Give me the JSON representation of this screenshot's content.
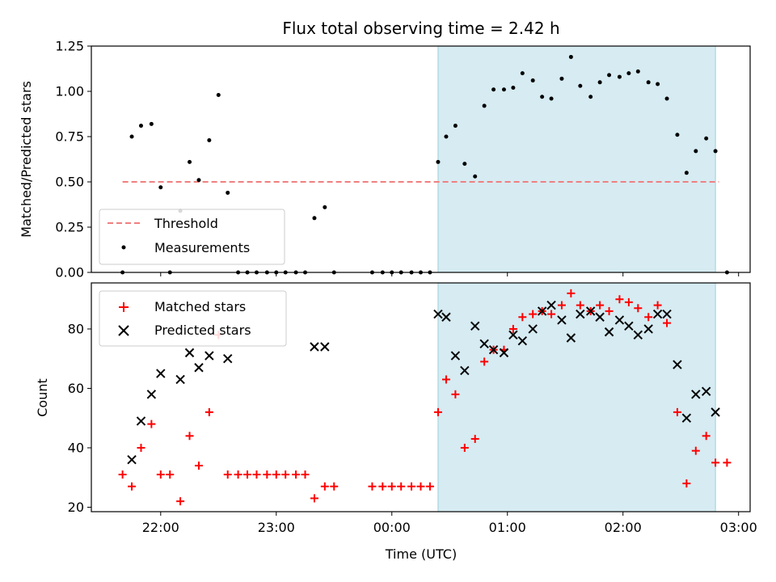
{
  "chart_data": [
    {
      "type": "scatter",
      "title": "Flux total observing time = 2.42 h",
      "xlabel": "",
      "ylabel": "Matched/Predicted stars",
      "ylim": [
        0,
        1.25
      ],
      "yticks": [
        "0.00",
        "0.25",
        "0.50",
        "0.75",
        "1.00",
        "1.25"
      ],
      "legend": {
        "placement": "lower-left",
        "entries": [
          "Threshold",
          "Measurements"
        ]
      },
      "threshold": {
        "name": "Threshold",
        "value": 0.5,
        "x_from": 21.67,
        "x_to": 26.83,
        "color": "#f08080"
      },
      "shaded_region": {
        "from": 24.4,
        "to": 26.8,
        "color": "#add8e6"
      },
      "series": [
        {
          "name": "Measurements",
          "color": "#000000",
          "x": [
            21.67,
            21.75,
            21.83,
            21.92,
            22.0,
            22.08,
            22.17,
            22.25,
            22.33,
            22.42,
            22.5,
            22.58,
            22.67,
            22.75,
            22.83,
            22.92,
            23.0,
            23.08,
            23.17,
            23.25,
            23.33,
            23.42,
            23.5,
            23.83,
            23.92,
            24.0,
            24.08,
            24.17,
            24.25,
            24.33,
            24.4,
            24.47,
            24.55,
            24.63,
            24.72,
            24.8,
            24.88,
            24.97,
            25.05,
            25.13,
            25.22,
            25.3,
            25.38,
            25.47,
            25.55,
            25.63,
            25.72,
            25.8,
            25.88,
            25.97,
            26.05,
            26.13,
            26.22,
            26.3,
            26.38,
            26.47,
            26.55,
            26.63,
            26.72,
            26.8,
            26.9
          ],
          "y": [
            0.0,
            0.75,
            0.81,
            0.82,
            0.47,
            0.0,
            0.34,
            0.61,
            0.51,
            0.73,
            0.98,
            0.44,
            0.0,
            0.0,
            0.0,
            0.0,
            0.0,
            0.0,
            0.0,
            0.0,
            0.3,
            0.36,
            0.0,
            0.0,
            0.0,
            0.0,
            0.0,
            0.0,
            0.0,
            0.0,
            0.61,
            0.75,
            0.81,
            0.6,
            0.53,
            0.92,
            1.01,
            1.01,
            1.02,
            1.1,
            1.06,
            0.97,
            0.96,
            1.07,
            1.19,
            1.03,
            0.97,
            1.05,
            1.09,
            1.08,
            1.1,
            1.11,
            1.05,
            1.04,
            0.96,
            0.76,
            0.55,
            0.67,
            0.74,
            0.67,
            0.0
          ]
        }
      ]
    },
    {
      "type": "scatter",
      "title": "",
      "xlabel": "Time (UTC)",
      "ylabel": "Count",
      "xlim": [
        21.4,
        27.1
      ],
      "ylim": [
        18.5,
        95.5
      ],
      "yticks": [
        "20",
        "40",
        "60",
        "80"
      ],
      "xticks": [
        "22:00",
        "23:00",
        "00:00",
        "01:00",
        "02:00",
        "03:00"
      ],
      "xtick_values": [
        22,
        23,
        24,
        25,
        26,
        27
      ],
      "legend": {
        "placement": "upper-left",
        "entries": [
          "Matched stars",
          "Predicted stars"
        ]
      },
      "shaded_region": {
        "from": 24.4,
        "to": 26.8,
        "color": "#add8e6"
      },
      "series": [
        {
          "name": "Matched stars",
          "marker": "plus",
          "color": "#ff0000",
          "x": [
            21.67,
            21.75,
            21.83,
            21.92,
            22.0,
            22.08,
            22.17,
            22.25,
            22.33,
            22.42,
            22.5,
            22.58,
            22.67,
            22.75,
            22.83,
            22.92,
            23.0,
            23.08,
            23.17,
            23.25,
            23.33,
            23.42,
            23.5,
            23.83,
            23.92,
            24.0,
            24.08,
            24.17,
            24.25,
            24.33,
            24.4,
            24.47,
            24.55,
            24.63,
            24.72,
            24.8,
            24.88,
            24.97,
            25.05,
            25.13,
            25.22,
            25.3,
            25.38,
            25.47,
            25.55,
            25.63,
            25.72,
            25.8,
            25.88,
            25.97,
            26.05,
            26.13,
            26.22,
            26.3,
            26.38,
            26.47,
            26.55,
            26.63,
            26.72,
            26.8,
            26.9
          ],
          "y": [
            31,
            27,
            40,
            48,
            31,
            31,
            22,
            44,
            34,
            52,
            78,
            31,
            31,
            31,
            31,
            31,
            31,
            31,
            31,
            31,
            23,
            27,
            27,
            27,
            27,
            27,
            27,
            27,
            27,
            27,
            52,
            63,
            58,
            40,
            43,
            69,
            73,
            73,
            80,
            84,
            85,
            86,
            85,
            88,
            92,
            88,
            86,
            88,
            86,
            90,
            89,
            87,
            84,
            88,
            82,
            52,
            28,
            39,
            44,
            35,
            35
          ]
        },
        {
          "name": "Predicted stars",
          "marker": "x",
          "color": "#000000",
          "x": [
            21.75,
            21.83,
            21.92,
            22.0,
            22.17,
            22.25,
            22.33,
            22.42,
            22.58,
            23.33,
            23.42,
            24.4,
            24.47,
            24.55,
            24.63,
            24.72,
            24.8,
            24.88,
            24.97,
            25.05,
            25.13,
            25.22,
            25.3,
            25.38,
            25.47,
            25.55,
            25.63,
            25.72,
            25.8,
            25.88,
            25.97,
            26.05,
            26.13,
            26.22,
            26.3,
            26.38,
            26.47,
            26.55,
            26.63,
            26.72,
            26.8
          ],
          "y": [
            36,
            49,
            58,
            65,
            63,
            72,
            67,
            71,
            70,
            74,
            74,
            85,
            84,
            71,
            66,
            81,
            75,
            73,
            72,
            78,
            76,
            80,
            86,
            88,
            83,
            77,
            85,
            86,
            84,
            79,
            83,
            81,
            78,
            80,
            85,
            85,
            68,
            50,
            58,
            59,
            52
          ]
        }
      ]
    }
  ]
}
